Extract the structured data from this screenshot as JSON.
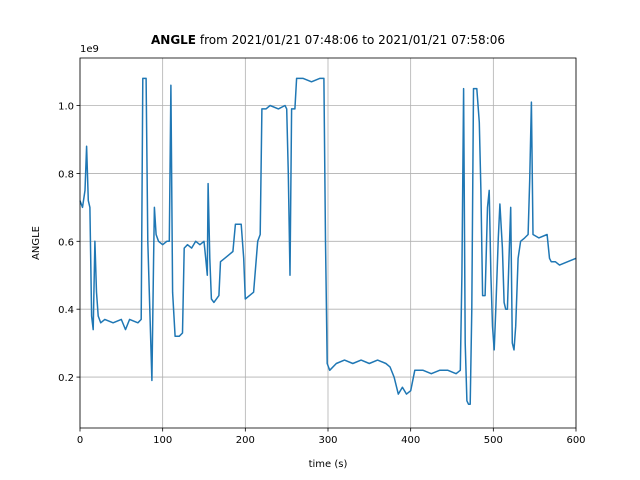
{
  "chart_data": {
    "type": "line",
    "title_bold": "ANGLE",
    "title": "from 2021/01/21 07:48:06 to 2021/01/21 07:58:06",
    "xlabel": "time (s)",
    "ylabel": "ANGLE",
    "y_offset_label": "1e9",
    "xlim": [
      0,
      600
    ],
    "ylim": [
      0.05,
      1.14
    ],
    "xticks": [
      0,
      100,
      200,
      300,
      400,
      500,
      600
    ],
    "yticks": [
      0.2,
      0.4,
      0.6,
      0.8,
      {
        "value": 1,
        "label": "1.0"
      }
    ],
    "grid": true,
    "series": [
      {
        "name": "ANGLE",
        "color": "#1f77b4",
        "x": [
          0,
          3,
          6,
          8,
          10,
          12,
          14,
          16,
          18,
          20,
          22,
          25,
          30,
          40,
          50,
          55,
          60,
          70,
          74,
          76,
          80,
          82,
          85,
          87,
          89,
          90,
          92,
          95,
          100,
          105,
          108,
          110,
          112,
          115,
          120,
          124,
          126,
          130,
          135,
          140,
          145,
          150,
          152,
          154,
          155,
          157,
          159,
          162,
          168,
          170,
          175,
          180,
          185,
          188,
          195,
          198,
          200,
          205,
          210,
          215,
          218,
          220,
          225,
          230,
          240,
          248,
          250,
          252,
          254,
          256,
          260,
          262,
          270,
          280,
          290,
          295,
          297,
          299,
          302,
          310,
          320,
          330,
          340,
          350,
          360,
          370,
          375,
          380,
          385,
          390,
          395,
          400,
          405,
          415,
          425,
          435,
          445,
          455,
          460,
          462,
          464,
          466,
          468,
          470,
          472,
          474,
          476,
          480,
          483,
          485,
          487,
          490,
          493,
          495,
          497,
          499,
          501,
          503,
          506,
          508,
          511,
          513,
          515,
          517,
          519,
          521,
          523,
          525,
          527,
          530,
          533,
          538,
          542,
          544,
          546,
          548,
          555,
          565,
          568,
          570,
          575,
          580,
          590,
          600
        ],
        "values": [
          0.72,
          0.7,
          0.75,
          0.88,
          0.72,
          0.7,
          0.38,
          0.34,
          0.6,
          0.45,
          0.38,
          0.36,
          0.37,
          0.36,
          0.37,
          0.34,
          0.37,
          0.36,
          0.37,
          1.08,
          1.08,
          0.6,
          0.35,
          0.19,
          0.55,
          0.7,
          0.62,
          0.6,
          0.59,
          0.6,
          0.6,
          1.06,
          0.45,
          0.32,
          0.32,
          0.33,
          0.58,
          0.59,
          0.58,
          0.6,
          0.59,
          0.6,
          0.55,
          0.5,
          0.77,
          0.55,
          0.43,
          0.42,
          0.44,
          0.54,
          0.55,
          0.56,
          0.57,
          0.65,
          0.65,
          0.55,
          0.43,
          0.44,
          0.45,
          0.6,
          0.62,
          0.99,
          0.99,
          1.0,
          0.99,
          1.0,
          0.99,
          0.8,
          0.5,
          0.99,
          0.99,
          1.08,
          1.08,
          1.07,
          1.08,
          1.08,
          0.6,
          0.24,
          0.22,
          0.24,
          0.25,
          0.24,
          0.25,
          0.24,
          0.25,
          0.24,
          0.23,
          0.2,
          0.15,
          0.17,
          0.15,
          0.16,
          0.22,
          0.22,
          0.21,
          0.22,
          0.22,
          0.21,
          0.22,
          0.5,
          1.05,
          0.3,
          0.13,
          0.12,
          0.12,
          0.4,
          1.05,
          1.05,
          0.95,
          0.75,
          0.44,
          0.44,
          0.7,
          0.75,
          0.5,
          0.35,
          0.28,
          0.4,
          0.61,
          0.71,
          0.58,
          0.42,
          0.4,
          0.4,
          0.55,
          0.7,
          0.3,
          0.28,
          0.35,
          0.55,
          0.6,
          0.61,
          0.62,
          0.78,
          1.01,
          0.62,
          0.61,
          0.62,
          0.55,
          0.54,
          0.54,
          0.53,
          0.54,
          0.55
        ]
      }
    ]
  }
}
